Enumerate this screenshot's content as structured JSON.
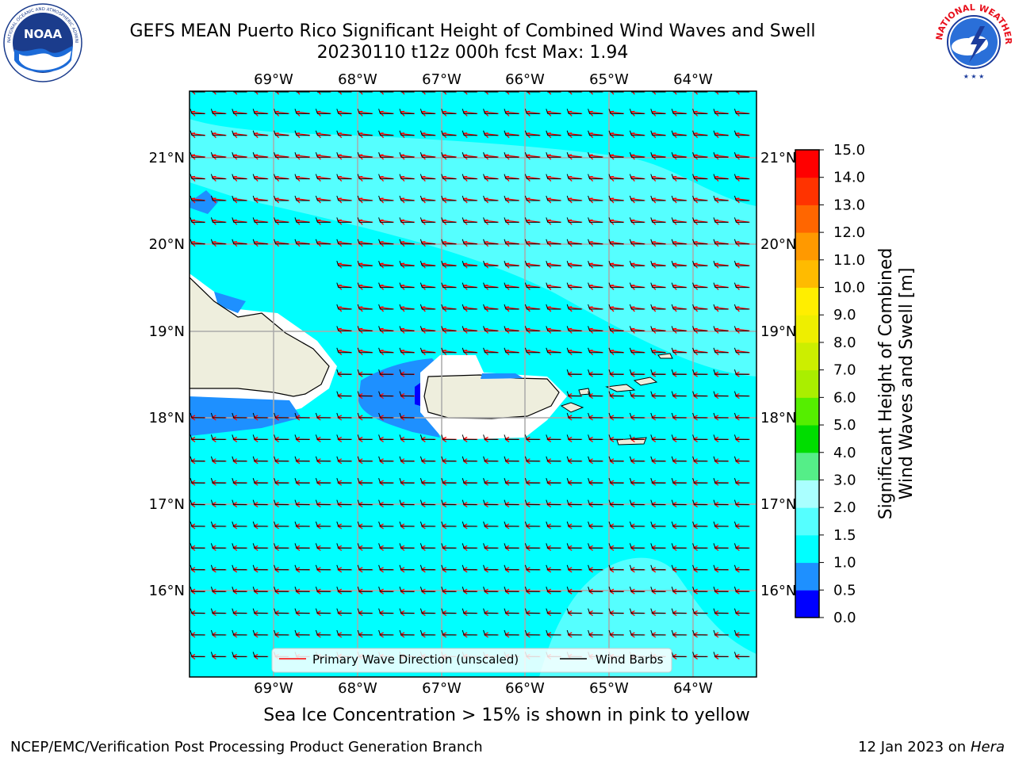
{
  "title": {
    "line1": "GEFS MEAN Puerto Rico Significant Height of Combined Wind Waves and Swell",
    "line2": "20230110 t12z 000h fcst   Max: 1.94"
  },
  "logos": {
    "noaa_icon": "noaa-logo",
    "nws_icon": "nws-logo",
    "noaa_text": "NOAA",
    "noaa_ring": "NATIONAL OCEANIC AND ATMOSPHERIC ADMINISTRATION · U.S. DEPARTMENT OF COMMERCE",
    "nws_ring": "NATIONAL WEATHER SERVICE"
  },
  "map": {
    "lon_labels": [
      "69°W",
      "68°W",
      "67°W",
      "66°W",
      "65°W",
      "64°W"
    ],
    "lat_labels": [
      "21°N",
      "20°N",
      "19°N",
      "18°N",
      "17°N",
      "16°N"
    ],
    "legend": {
      "primary_wave": "Primary Wave Direction (unscaled)",
      "wind_barbs": "Wind Barbs",
      "primary_wave_color": "#ff0000",
      "wind_barbs_color": "#000000"
    },
    "colors": {
      "ocean_main": "#00ffff",
      "ocean_light": "#55ffff",
      "ocean_lighter": "#7fffff",
      "shallow_blue": "#1e90ff",
      "dark_blue": "#0000ff",
      "land": "#eeeedd",
      "coast_white": "#ffffff"
    }
  },
  "colorbar": {
    "label_line1": "Significant Height of Combined",
    "label_line2": "Wind Waves and Swell [m]",
    "ticks": [
      "0.0",
      "0.5",
      "1.0",
      "1.5",
      "2.0",
      "3.0",
      "4.0",
      "5.0",
      "6.0",
      "7.0",
      "8.0",
      "9.0",
      "10.0",
      "11.0",
      "12.0",
      "13.0",
      "14.0",
      "15.0"
    ],
    "colors": [
      "#0000ff",
      "#1e90ff",
      "#00ffff",
      "#55ffff",
      "#aaffff",
      "#55ee88",
      "#00dd00",
      "#55ee00",
      "#aaee00",
      "#ccee00",
      "#eeee00",
      "#ffee00",
      "#ffbb00",
      "#ff9900",
      "#ff6600",
      "#ff3300",
      "#ff0000"
    ]
  },
  "note": "Sea Ice Concentration > 15% is shown in pink to yellow",
  "footer": {
    "left": "NCEP/EMC/Verification Post Processing Product Generation Branch",
    "right_prefix": "12 Jan 2023 on ",
    "right_italic": "Hera"
  }
}
